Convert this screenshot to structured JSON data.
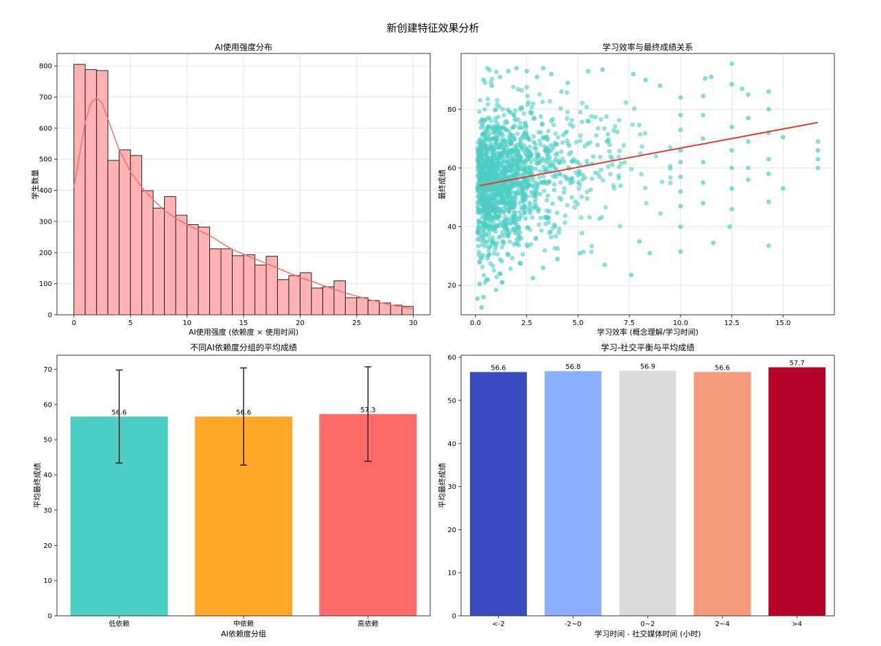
{
  "figure_title": "新创建特征效果分析",
  "chart_data": [
    {
      "type": "bar",
      "subtype": "histogram",
      "title": "AI使用强度分布",
      "xlabel": "AI使用强度 (依赖度 × 使用时间)",
      "ylabel": "学生数量",
      "xlim": [
        -1.5,
        31.5
      ],
      "ylim": [
        0,
        840
      ],
      "xticks": [
        0,
        5,
        10,
        15,
        20,
        25,
        30
      ],
      "yticks": [
        0,
        100,
        200,
        300,
        400,
        500,
        600,
        700,
        800
      ],
      "bin_edges": [
        0,
        1,
        2,
        3,
        4,
        5,
        6,
        7,
        8,
        9,
        10,
        11,
        12,
        13,
        14,
        15,
        16,
        17,
        18,
        19,
        20,
        21,
        22,
        23,
        24,
        25,
        26,
        27,
        28,
        29,
        30
      ],
      "counts": [
        805,
        788,
        785,
        496,
        530,
        512,
        399,
        343,
        380,
        320,
        290,
        282,
        212,
        212,
        190,
        193,
        160,
        188,
        113,
        126,
        135,
        86,
        90,
        109,
        55,
        55,
        46,
        38,
        31,
        27
      ],
      "bar_color": "#ffb3b3",
      "kde_color": "#ff6b6b",
      "kde": {
        "x": [
          0,
          1,
          1.5,
          2,
          2.5,
          3,
          4,
          5,
          6,
          7,
          8,
          9,
          10,
          11,
          12,
          13,
          14,
          15,
          16,
          17,
          18,
          19,
          20,
          21,
          22,
          23,
          24,
          25,
          26,
          27,
          28,
          29,
          30
        ],
        "y": [
          410,
          620,
          680,
          697,
          680,
          630,
          530,
          460,
          410,
          370,
          335,
          310,
          290,
          272,
          255,
          232,
          210,
          195,
          180,
          165,
          150,
          135,
          120,
          108,
          95,
          82,
          70,
          60,
          50,
          40,
          32,
          25,
          18
        ]
      }
    },
    {
      "type": "scatter",
      "title": "学习效率与最终成绩关系",
      "xlabel": "学习效率 (概念理解/学习时间)",
      "ylabel": "最终成绩",
      "xlim": [
        -0.7,
        17.5
      ],
      "ylim": [
        10,
        99
      ],
      "xticks": [
        "0.0",
        "2.5",
        "5.0",
        "7.5",
        "10.0",
        "12.5",
        "15.0"
      ],
      "yticks": [
        20,
        40,
        60,
        80
      ],
      "point_color": "#4ecdc4",
      "trend_color": "#e03c31",
      "trendline": {
        "x": [
          0.2,
          16.7
        ],
        "y": [
          54,
          75.5
        ]
      },
      "points": [
        [
          0.1,
          15.5
        ],
        [
          0.3,
          12.5
        ],
        [
          0.4,
          16
        ],
        [
          0.2,
          20.5
        ],
        [
          0.6,
          22
        ],
        [
          1.0,
          18.5
        ],
        [
          1.2,
          24
        ],
        [
          2.2,
          27.5
        ],
        [
          2.8,
          22.5
        ],
        [
          3.3,
          26
        ],
        [
          4.0,
          29
        ],
        [
          5.1,
          31
        ],
        [
          6.3,
          27
        ],
        [
          7.6,
          23.5
        ],
        [
          8.5,
          31
        ],
        [
          8.0,
          35
        ],
        [
          10.0,
          31.5
        ],
        [
          11.6,
          34.5
        ],
        [
          14.3,
          33.5
        ],
        [
          12.4,
          40
        ],
        [
          0.4,
          90
        ],
        [
          0.8,
          88
        ],
        [
          1.2,
          91
        ],
        [
          1.6,
          93
        ],
        [
          2.0,
          94
        ],
        [
          2.5,
          93
        ],
        [
          3.0,
          91
        ],
        [
          3.3,
          94
        ],
        [
          3.7,
          92
        ],
        [
          4.5,
          89
        ],
        [
          5.5,
          93
        ],
        [
          6.2,
          93.5
        ],
        [
          7.7,
          92
        ],
        [
          8.3,
          90
        ],
        [
          9.0,
          88
        ],
        [
          11.2,
          90.5
        ],
        [
          11.5,
          91
        ],
        [
          12.5,
          95.5
        ],
        [
          12.5,
          88.5
        ],
        [
          13.0,
          87
        ],
        [
          10.0,
          84
        ],
        [
          10.0,
          78
        ],
        [
          10.0,
          73
        ],
        [
          10.0,
          66
        ],
        [
          10.0,
          62
        ],
        [
          10.0,
          57
        ],
        [
          10.0,
          52
        ],
        [
          10.0,
          47
        ],
        [
          10.0,
          40
        ],
        [
          11.1,
          84.5
        ],
        [
          11.1,
          78
        ],
        [
          11.1,
          70
        ],
        [
          11.1,
          62
        ],
        [
          11.1,
          55
        ],
        [
          11.1,
          48
        ],
        [
          12.5,
          74
        ],
        [
          12.5,
          66
        ],
        [
          12.5,
          60
        ],
        [
          12.5,
          53
        ],
        [
          12.5,
          46
        ],
        [
          13.3,
          85
        ],
        [
          13.3,
          77
        ],
        [
          13.3,
          69
        ],
        [
          13.3,
          60
        ],
        [
          13.3,
          56
        ],
        [
          14.3,
          86
        ],
        [
          14.3,
          80
        ],
        [
          14.3,
          72
        ],
        [
          14.3,
          63
        ],
        [
          14.3,
          58
        ],
        [
          14.3,
          48.5
        ],
        [
          15.0,
          70.5
        ],
        [
          15.0,
          53
        ],
        [
          16.7,
          69
        ],
        [
          16.7,
          66
        ],
        [
          16.7,
          63
        ],
        [
          16.7,
          60
        ]
      ]
    },
    {
      "type": "bar",
      "title": "不同AI依赖度分组的平均成绩",
      "xlabel": "AI依赖度分组",
      "ylabel": "平均最终成绩",
      "categories": [
        "低依赖",
        "中依赖",
        "高依赖"
      ],
      "values": [
        56.6,
        56.6,
        57.3
      ],
      "errors": [
        13.2,
        13.8,
        13.4
      ],
      "labels": [
        "56.6",
        "56.6",
        "57.3"
      ],
      "colors": [
        "#4ecdc4",
        "#ffa726",
        "#ff6b6b"
      ],
      "ylim": [
        0,
        74
      ],
      "yticks": [
        0,
        10,
        20,
        30,
        40,
        50,
        60,
        70
      ]
    },
    {
      "type": "bar",
      "title": "学习-社交平衡与平均成绩",
      "xlabel": "学习时间 - 社交媒体时间 (小时)",
      "ylabel": "平均最终成绩",
      "categories": [
        "<-2",
        "-2~0",
        "0~2",
        "2~4",
        ">4"
      ],
      "values": [
        56.6,
        56.8,
        56.9,
        56.6,
        57.7
      ],
      "labels": [
        "56.6",
        "56.8",
        "56.9",
        "56.6",
        "57.7"
      ],
      "colors": [
        "#3b4cc0",
        "#8db0fe",
        "#dddddd",
        "#f49a7b",
        "#b40426"
      ],
      "ylim": [
        0,
        60.5
      ],
      "yticks": [
        0,
        10,
        20,
        30,
        40,
        50,
        60
      ]
    }
  ]
}
